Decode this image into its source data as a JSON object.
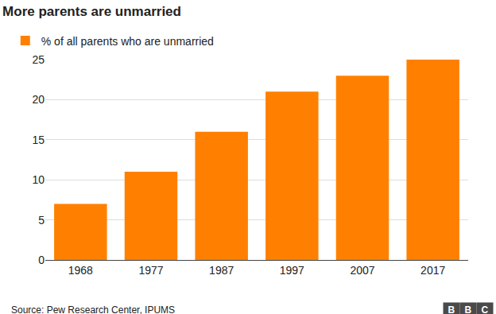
{
  "chart_data": {
    "type": "bar",
    "title": "More parents are unmarried",
    "categories": [
      "1968",
      "1977",
      "1987",
      "1997",
      "2007",
      "2017"
    ],
    "series": [
      {
        "name": "% of all parents who are unmarried",
        "color": "#ff8000",
        "values": [
          7,
          11,
          16,
          21,
          23,
          25
        ]
      }
    ],
    "ylim": [
      0,
      25
    ],
    "yticks": [
      0,
      5,
      10,
      15,
      20,
      25
    ],
    "grid": true,
    "legend": "top-left",
    "source": "Source: Pew Research Center, IPUMS",
    "credit": "BBC"
  }
}
